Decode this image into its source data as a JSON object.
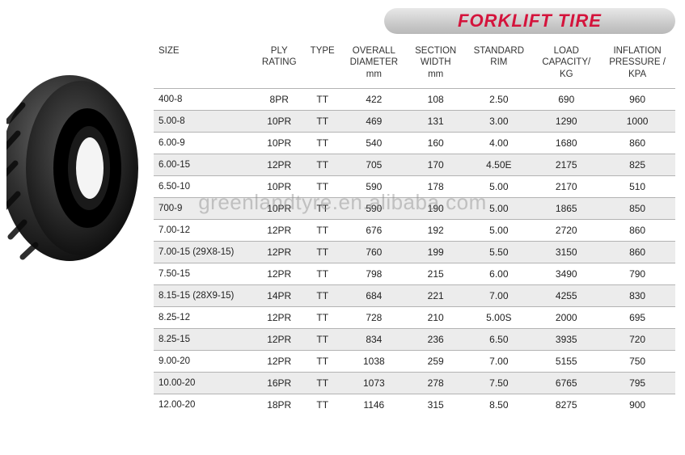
{
  "header": {
    "title": "FORKLIFT TIRE"
  },
  "watermark": "greenlandtyre.en.alibaba.com",
  "table": {
    "columns": [
      {
        "l1": "SIZE",
        "l2": ""
      },
      {
        "l1": "PLY",
        "l2": "RATING"
      },
      {
        "l1": "TYPE",
        "l2": ""
      },
      {
        "l1": "OVERALL",
        "l2": "DIAMETER",
        "l3": "mm"
      },
      {
        "l1": "SECTION",
        "l2": "WIDTH",
        "l3": "mm"
      },
      {
        "l1": "STANDARD",
        "l2": "RIM"
      },
      {
        "l1": "LOAD",
        "l2": "CAPACITY/",
        "l3": "KG"
      },
      {
        "l1": "INFLATION",
        "l2": "PRESSURE /",
        "l3": "KPA"
      }
    ],
    "rows": [
      [
        "400-8",
        "8PR",
        "TT",
        "422",
        "108",
        "2.50",
        "690",
        "960"
      ],
      [
        "5.00-8",
        "10PR",
        "TT",
        "469",
        "131",
        "3.00",
        "1290",
        "1000"
      ],
      [
        "6.00-9",
        "10PR",
        "TT",
        "540",
        "160",
        "4.00",
        "1680",
        "860"
      ],
      [
        "6.00-15",
        "12PR",
        "TT",
        "705",
        "170",
        "4.50E",
        "2175",
        "825"
      ],
      [
        "6.50-10",
        "10PR",
        "TT",
        "590",
        "178",
        "5.00",
        "2170",
        "510"
      ],
      [
        "700-9",
        "10PR",
        "TT",
        "590",
        "190",
        "5.00",
        "1865",
        "850"
      ],
      [
        "7.00-12",
        "12PR",
        "TT",
        "676",
        "192",
        "5.00",
        "2720",
        "860"
      ],
      [
        "7.00-15 (29X8-15)",
        "12PR",
        "TT",
        "760",
        "199",
        "5.50",
        "3150",
        "860"
      ],
      [
        "7.50-15",
        "12PR",
        "TT",
        "798",
        "215",
        "6.00",
        "3490",
        "790"
      ],
      [
        "8.15-15 (28X9-15)",
        "14PR",
        "TT",
        "684",
        "221",
        "7.00",
        "4255",
        "830"
      ],
      [
        "8.25-12",
        "12PR",
        "TT",
        "728",
        "210",
        "5.00S",
        "2000",
        "695"
      ],
      [
        "8.25-15",
        "12PR",
        "TT",
        "834",
        "236",
        "6.50",
        "3935",
        "720"
      ],
      [
        "9.00-20",
        "12PR",
        "TT",
        "1038",
        "259",
        "7.00",
        "5155",
        "750"
      ],
      [
        "10.00-20",
        "16PR",
        "TT",
        "1073",
        "278",
        "7.50",
        "6765",
        "795"
      ],
      [
        "12.00-20",
        "18PR",
        "TT",
        "1146",
        "315",
        "8.50",
        "8275",
        "900"
      ]
    ],
    "banded_rows": [
      1,
      3,
      5,
      7,
      9,
      11,
      13
    ]
  }
}
